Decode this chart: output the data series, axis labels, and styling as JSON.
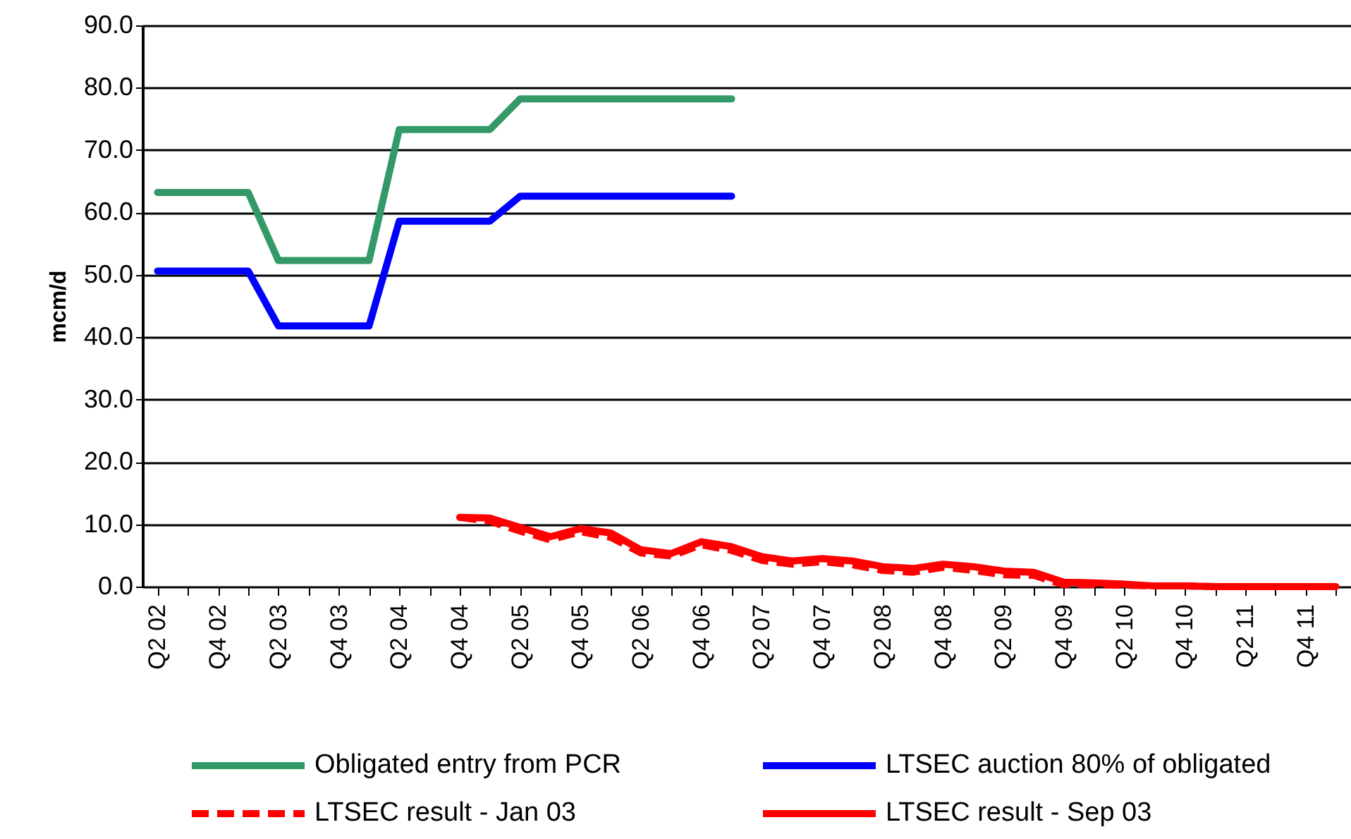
{
  "chart_data": {
    "type": "line",
    "ylabel": "mcm/d",
    "categories": [
      "Q2 02",
      null,
      "Q4 02",
      null,
      "Q2 03",
      null,
      "Q4 03",
      null,
      "Q2 04",
      null,
      "Q4 04",
      null,
      "Q2 05",
      null,
      "Q4 05",
      null,
      "Q2 06",
      null,
      "Q4 06",
      null,
      "Q2 07",
      null,
      "Q4 07",
      null,
      "Q2 08",
      null,
      "Q4 08",
      null,
      "Q2 09",
      null,
      "Q4 09",
      null,
      "Q2 10",
      null,
      "Q4 10",
      null,
      "Q2 11",
      null,
      "Q4 11",
      null
    ],
    "series": [
      {
        "name": "Obligated entry from PCR",
        "color": "#339966",
        "line_style": "solid",
        "values": [
          63.2,
          63.2,
          63.2,
          63.2,
          52.3,
          52.3,
          52.3,
          52.3,
          73.3,
          73.3,
          73.3,
          73.3,
          78.2,
          78.2,
          78.2,
          78.2,
          78.2,
          78.2,
          78.2,
          78.2,
          null,
          null,
          null,
          null,
          null,
          null,
          null,
          null,
          null,
          null,
          null,
          null,
          null,
          null,
          null,
          null,
          null,
          null,
          null,
          null
        ]
      },
      {
        "name": "LTSEC auction 80% of obligated",
        "color": "#0000ff",
        "line_style": "solid",
        "values": [
          50.6,
          50.6,
          50.6,
          50.6,
          41.8,
          41.8,
          41.8,
          41.8,
          58.6,
          58.6,
          58.6,
          58.6,
          62.6,
          62.6,
          62.6,
          62.6,
          62.6,
          62.6,
          62.6,
          62.6,
          null,
          null,
          null,
          null,
          null,
          null,
          null,
          null,
          null,
          null,
          null,
          null,
          null,
          null,
          null,
          null,
          null,
          null,
          null,
          null
        ]
      },
      {
        "name": "LTSEC result - Jan 03",
        "color": "#ff0000",
        "line_style": "dashed",
        "values": [
          null,
          null,
          null,
          null,
          null,
          null,
          null,
          null,
          null,
          null,
          11.1,
          10.5,
          8.9,
          7.5,
          8.8,
          7.9,
          5.4,
          4.9,
          6.7,
          5.8,
          4.2,
          3.6,
          4.0,
          3.5,
          2.6,
          2.3,
          3.1,
          2.6,
          1.9,
          1.8,
          0.3,
          0.3,
          0.2,
          0.1,
          0.1,
          0.0,
          0.0,
          0.0,
          0.0,
          0.0
        ]
      },
      {
        "name": "LTSEC result - Sep 03",
        "color": "#ff0000",
        "line_style": "solid",
        "values": [
          null,
          null,
          null,
          null,
          null,
          null,
          null,
          null,
          null,
          null,
          11.1,
          11.0,
          9.5,
          8.0,
          9.3,
          8.6,
          5.9,
          5.3,
          7.2,
          6.4,
          4.8,
          4.1,
          4.5,
          4.1,
          3.2,
          2.9,
          3.6,
          3.2,
          2.5,
          2.3,
          0.7,
          0.6,
          0.4,
          0.1,
          0.1,
          0.0,
          0.0,
          0.0,
          0.0,
          0.0
        ]
      }
    ],
    "ylim": [
      0,
      90
    ],
    "yticks": [
      {
        "value": 0,
        "label": "0.0"
      },
      {
        "value": 10,
        "label": "10.0"
      },
      {
        "value": 20,
        "label": "20.0"
      },
      {
        "value": 30,
        "label": "30.0"
      },
      {
        "value": 40,
        "label": "40.0"
      },
      {
        "value": 50,
        "label": "50.0"
      },
      {
        "value": 60,
        "label": "60.0"
      },
      {
        "value": 70,
        "label": "70.0"
      },
      {
        "value": 80,
        "label": "80.0"
      },
      {
        "value": 90,
        "label": "90.0"
      }
    ],
    "grid": "y",
    "legend": "bottom",
    "marker": "none"
  }
}
